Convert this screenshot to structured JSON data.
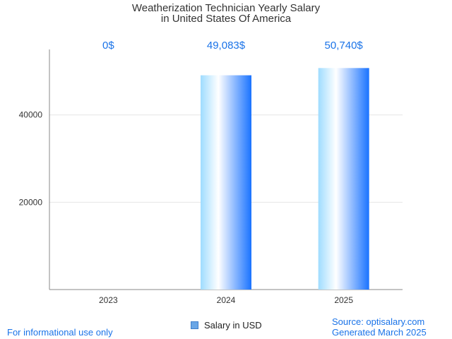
{
  "chart_data": {
    "type": "bar",
    "title": "Weatherization Technician Yearly Salary",
    "subtitle": "in United States Of America",
    "categories": [
      "2023",
      "2024",
      "2025"
    ],
    "series": [
      {
        "name": "Salary in USD",
        "values": [
          0,
          49083,
          50740
        ],
        "data_labels": [
          "0$",
          "49,083$",
          "50,740$"
        ]
      }
    ],
    "yticks": [
      20000,
      40000
    ],
    "ylim": [
      0,
      55000
    ],
    "grid": true,
    "legend_position": "bottom"
  },
  "footer": {
    "disclaimer": "For informational use only",
    "source": "Source: optisalary.com",
    "generated": "Generated March 2025"
  },
  "colors": {
    "bar_dark": "#1a73ff",
    "bar_light": "#9fdcff",
    "label": "#1a73e8",
    "axis": "#888888",
    "grid": "#e6e6e6"
  }
}
